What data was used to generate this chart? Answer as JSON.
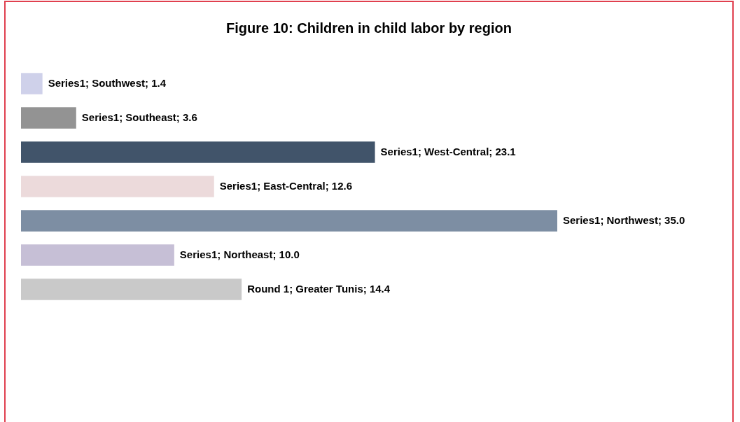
{
  "chart_data": {
    "type": "bar",
    "orientation": "horizontal",
    "title": "Figure 10: Children in child labor by region",
    "categories": [
      null,
      null,
      null,
      null,
      null,
      null,
      null
    ],
    "values": [
      1.4,
      3.6,
      23.1,
      12.6,
      35.0,
      10.0,
      14.4
    ],
    "colors": [
      "#cfd1ea",
      "#939393",
      "#41546a",
      "#ecdadb",
      "#7d8ea3",
      "#c6bfd6",
      "#c9c9c9"
    ],
    "value_labels": [
      "Series1; Southwest; 1.4",
      "Series1; Southeast; 3.6",
      "Series1; West-Central; 23.1",
      "Series1; East-Central; 12.6",
      "Series1; Northwest; 35.0",
      "Series1; Northeast; 10.0",
      "Round 1; Greater Tunis; 14.4"
    ]
  }
}
